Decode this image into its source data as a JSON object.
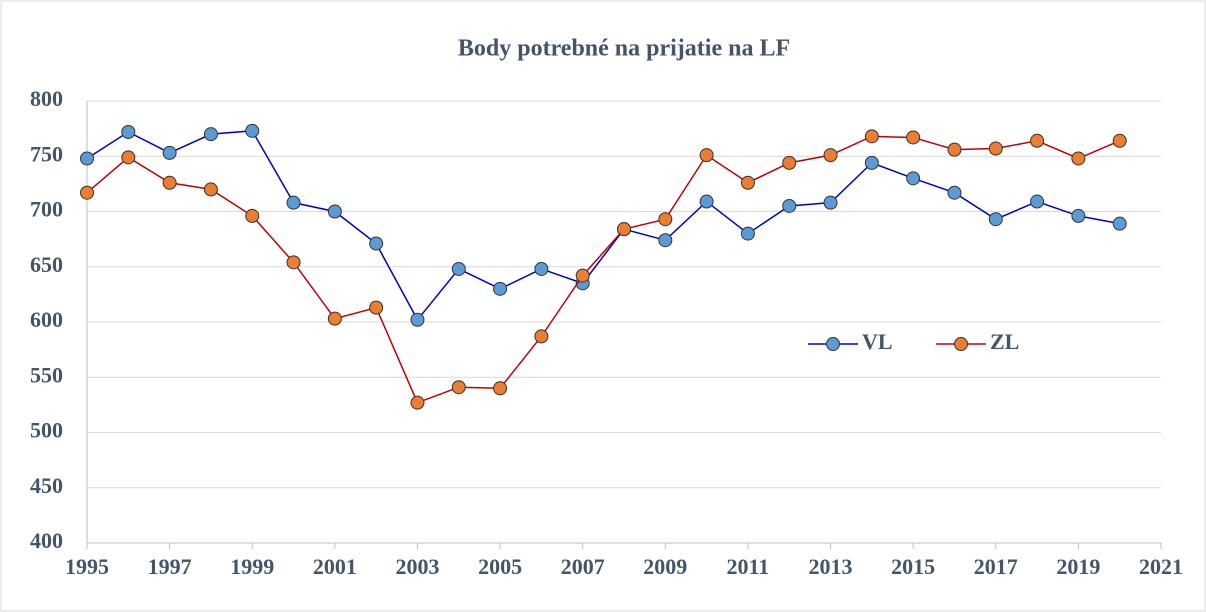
{
  "chart_data": {
    "type": "line",
    "title": "Body potrebné na prijatie na LF",
    "x": [
      1995,
      1996,
      1997,
      1998,
      1999,
      2000,
      2001,
      2002,
      2003,
      2004,
      2005,
      2006,
      2007,
      2008,
      2009,
      2010,
      2011,
      2012,
      2013,
      2014,
      2015,
      2016,
      2017,
      2018,
      2019,
      2020
    ],
    "series": [
      {
        "name": "VL",
        "color": "#0000cc",
        "marker_color": "#5b9bd5",
        "values": [
          748,
          772,
          753,
          770,
          773,
          708,
          700,
          671,
          602,
          648,
          630,
          648,
          635,
          684,
          674,
          709,
          680,
          705,
          708,
          744,
          730,
          717,
          693,
          709,
          696,
          689
        ]
      },
      {
        "name": "ZL",
        "color": "#c00000",
        "marker_color": "#ed7d31",
        "values": [
          717,
          749,
          726,
          720,
          696,
          654,
          603,
          613,
          527,
          541,
          540,
          587,
          642,
          684,
          693,
          751,
          726,
          744,
          751,
          768,
          767,
          756,
          757,
          764,
          748,
          764
        ]
      }
    ],
    "xlim": [
      1995,
      2021
    ],
    "xticks": [
      1995,
      1997,
      1999,
      2001,
      2003,
      2005,
      2007,
      2009,
      2011,
      2013,
      2015,
      2017,
      2019,
      2021
    ],
    "ylim": [
      400,
      800
    ],
    "yticks": [
      400,
      450,
      500,
      550,
      600,
      650,
      700,
      750,
      800
    ],
    "grid": true,
    "legend": "center-right"
  }
}
